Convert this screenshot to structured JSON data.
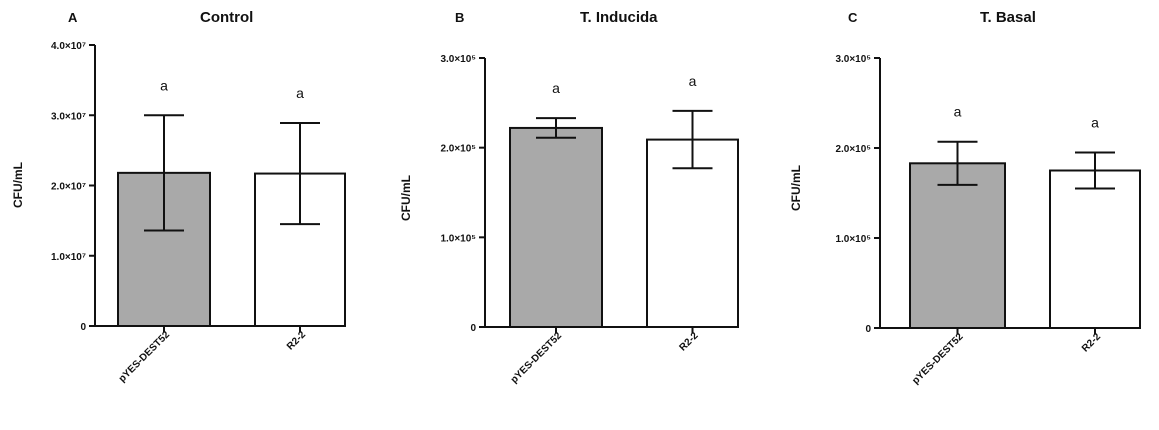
{
  "chart_data": [
    {
      "panel": "A",
      "type": "bar",
      "title": "Control",
      "ylabel": "CFU/mL",
      "xlabel": "",
      "categories": [
        "pYES-DEST52",
        "R2-2"
      ],
      "values": [
        21800000,
        21700000
      ],
      "errors": [
        8200000,
        7200000
      ],
      "annotations": [
        "a",
        "a"
      ],
      "bar_colors": [
        "#a9a9a9",
        "#ffffff"
      ],
      "ylim": [
        0,
        40000000
      ],
      "yticks": [
        0,
        10000000,
        20000000,
        30000000,
        40000000
      ],
      "ytick_labels": [
        "0",
        "1.0×10⁷",
        "2.0×10⁷",
        "3.0×10⁷",
        "4.0×10⁷"
      ],
      "grid": false
    },
    {
      "panel": "B",
      "type": "bar",
      "title": "T. Inducida",
      "ylabel": "CFU/mL",
      "xlabel": "",
      "categories": [
        "pYES-DEST52",
        "R2-2"
      ],
      "values": [
        222000,
        209000
      ],
      "errors": [
        11000,
        32000
      ],
      "annotations": [
        "a",
        "a"
      ],
      "bar_colors": [
        "#a9a9a9",
        "#ffffff"
      ],
      "ylim": [
        0,
        300000
      ],
      "yticks": [
        0,
        100000,
        200000,
        300000
      ],
      "ytick_labels": [
        "0",
        "1.0×10⁵",
        "2.0×10⁵",
        "3.0×10⁵"
      ],
      "grid": false
    },
    {
      "panel": "C",
      "type": "bar",
      "title": "T. Basal",
      "ylabel": "CFU/mL",
      "xlabel": "",
      "categories": [
        "pYES-DEST52",
        "R2-2"
      ],
      "values": [
        183000,
        175000
      ],
      "errors": [
        24000,
        20000
      ],
      "annotations": [
        "a",
        "a"
      ],
      "bar_colors": [
        "#a9a9a9",
        "#ffffff"
      ],
      "ylim": [
        0,
        300000
      ],
      "yticks": [
        0,
        100000,
        200000,
        300000
      ],
      "ytick_labels": [
        "0",
        "1.0×10⁵",
        "2.0×10⁵",
        "3.0×10⁵"
      ],
      "grid": false
    }
  ]
}
